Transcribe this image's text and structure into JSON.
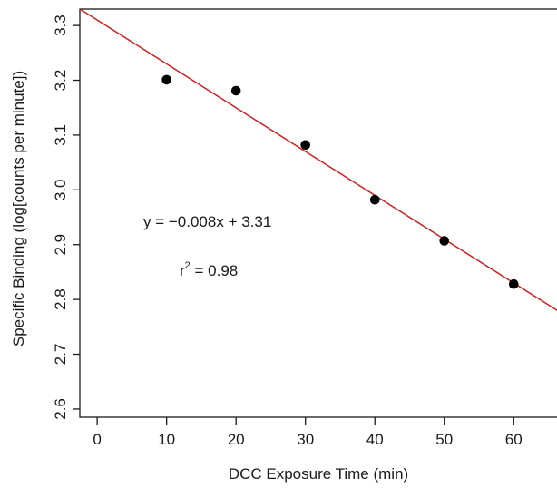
{
  "chart_data": {
    "type": "scatter",
    "title": "",
    "xlabel": "DCC Exposure Time (min)",
    "ylabel": "Specific Binding (log[counts per minute])",
    "xlim": [
      -2.5,
      66.5
    ],
    "ylim": [
      2.585,
      3.33
    ],
    "xticks": [
      0,
      10,
      20,
      30,
      40,
      50,
      60
    ],
    "yticks": [
      2.6,
      2.7,
      2.8,
      2.9,
      3.0,
      3.1,
      3.2,
      3.3
    ],
    "xtick_labels": [
      "0",
      "10",
      "20",
      "30",
      "40",
      "50",
      "60"
    ],
    "ytick_labels": [
      "2.6",
      "2.7",
      "2.8",
      "2.9",
      "3.0",
      "3.1",
      "3.2",
      "3.3"
    ],
    "grid": false,
    "series": [
      {
        "type": "scatter",
        "color": "#000000",
        "x": [
          10,
          20,
          30,
          40,
          50,
          60
        ],
        "y": [
          3.201,
          3.181,
          3.082,
          2.982,
          2.907,
          2.828
        ]
      }
    ],
    "fit": {
      "color": "#cc1f1f",
      "slope": -0.008,
      "intercept": 3.31
    },
    "annotations": {
      "equation": "y = −0.008x + 3.31",
      "r2_prefix": "r",
      "r2_sup": "2",
      "r2_value": " = 0.98"
    }
  }
}
